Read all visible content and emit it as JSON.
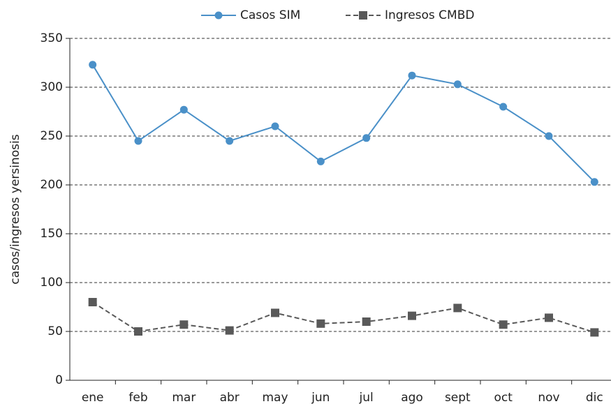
{
  "chart_data": {
    "type": "line",
    "y_label": "casos/ingresos yersinosis",
    "categories": [
      "ene",
      "feb",
      "mar",
      "abr",
      "may",
      "jun",
      "jul",
      "ago",
      "sept",
      "oct",
      "nov",
      "dic"
    ],
    "series": [
      {
        "name": "Casos SIM",
        "color": "#4a90c8",
        "marker": "circle",
        "dashed": false,
        "values": [
          323,
          245,
          277,
          245,
          260,
          224,
          248,
          312,
          303,
          280,
          250,
          203
        ]
      },
      {
        "name": "Ingresos CMBD",
        "color": "#595959",
        "marker": "square",
        "dashed": true,
        "values": [
          80,
          50,
          57,
          51,
          69,
          58,
          60,
          66,
          74,
          57,
          64,
          49
        ]
      }
    ],
    "ylim": [
      0,
      350
    ],
    "yticks": [
      0,
      50,
      100,
      150,
      200,
      250,
      300,
      350
    ],
    "grid": true
  }
}
